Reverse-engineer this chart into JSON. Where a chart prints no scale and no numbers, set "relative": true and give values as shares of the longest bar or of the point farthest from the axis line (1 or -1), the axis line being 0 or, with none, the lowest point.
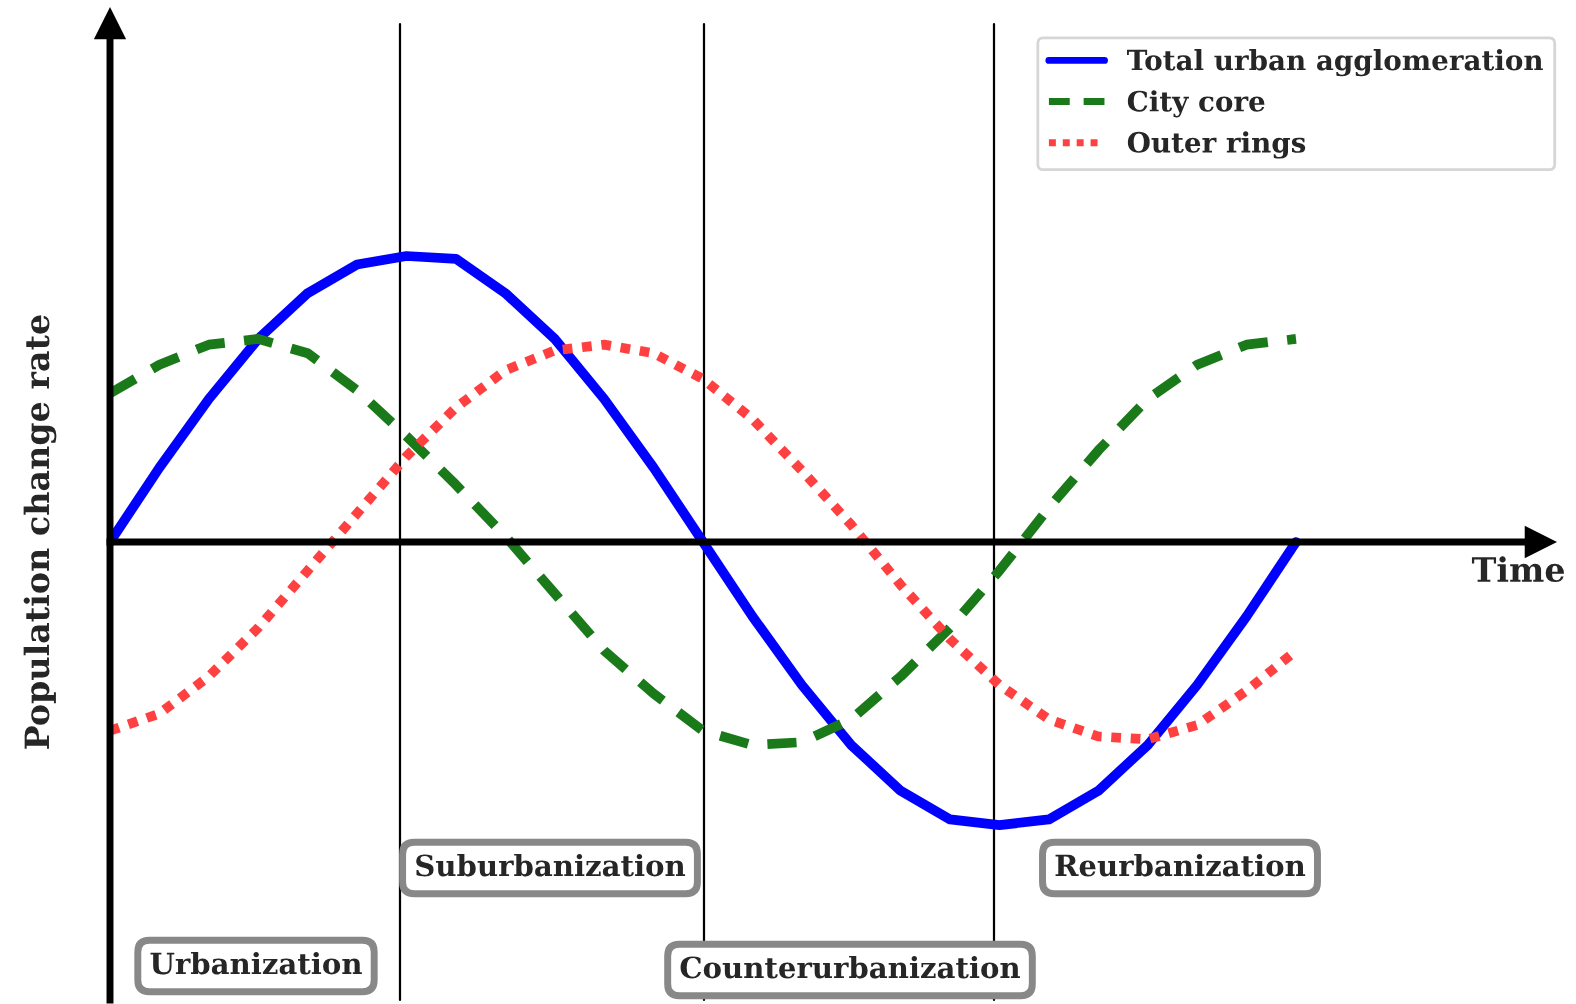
{
  "chart_data": {
    "type": "line",
    "relative": true,
    "xlabel": "Time",
    "ylabel": "Population change rate",
    "categories": [
      null,
      null,
      null,
      null,
      null,
      null,
      null,
      null,
      null,
      null,
      null,
      null,
      null,
      null,
      null,
      null,
      null,
      null,
      null,
      null,
      null,
      null,
      null,
      null,
      null
    ],
    "series": [
      {
        "name": "Total urban agglomeration",
        "color": "#0000ff",
        "line_style": "solid",
        "values": [
          0,
          0.26,
          0.5,
          0.71,
          0.87,
          0.97,
          1,
          0.99,
          0.87,
          0.71,
          0.5,
          0.26,
          0,
          -0.26,
          -0.5,
          -0.71,
          -0.87,
          -0.97,
          -0.99,
          -0.97,
          -0.87,
          -0.71,
          -0.5,
          -0.26,
          0
        ]
      },
      {
        "name": "City core",
        "color": "#1a7a1a",
        "line_style": "dashed",
        "values": [
          0.52,
          0.62,
          0.69,
          0.71,
          0.66,
          0.53,
          0.37,
          0.2,
          0.02,
          -0.18,
          -0.38,
          -0.53,
          -0.66,
          -0.71,
          -0.7,
          -0.62,
          -0.47,
          -0.3,
          -0.1,
          0.12,
          0.32,
          0.5,
          0.62,
          0.69,
          0.71
        ]
      },
      {
        "name": "Outer rings",
        "color": "#ff4040",
        "line_style": "dotted",
        "values": [
          -0.66,
          -0.6,
          -0.47,
          -0.3,
          -0.1,
          0.1,
          0.3,
          0.47,
          0.6,
          0.67,
          0.69,
          0.66,
          0.57,
          0.43,
          0.25,
          0.06,
          -0.15,
          -0.34,
          -0.5,
          -0.62,
          -0.68,
          -0.69,
          -0.64,
          -0.52,
          -0.38
        ]
      }
    ],
    "annotations": [
      "Urbanization",
      "Suburbanization",
      "Counterurbanization",
      "Reurbanization"
    ],
    "legend": "top right"
  }
}
